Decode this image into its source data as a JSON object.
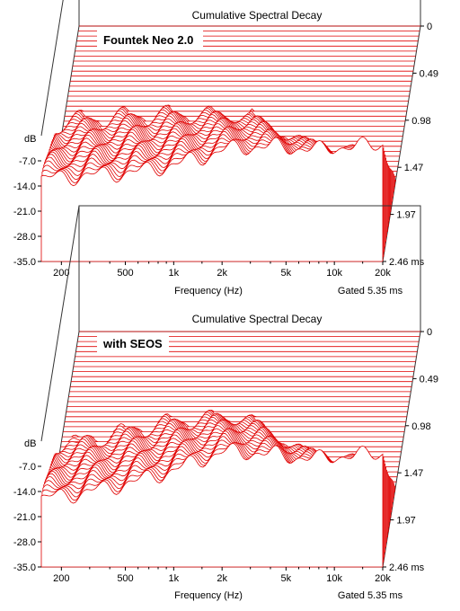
{
  "chart_data": [
    {
      "type": "waterfall",
      "title": "Cumulative Spectral Decay",
      "inset_label": "Fountek Neo 2.0",
      "xlabel": "Frequency (Hz)",
      "zlabel": "Gated 5.35 ms",
      "ylabel": "dB",
      "x_scale": "log",
      "xlim": [
        150,
        20000
      ],
      "x_ticks": [
        "200",
        "500",
        "1k",
        "2k",
        "5k",
        "10k",
        "20k"
      ],
      "x_tick_values": [
        200,
        500,
        1000,
        2000,
        5000,
        10000,
        20000
      ],
      "ylim": [
        -35,
        0
      ],
      "y_ticks": [
        "-7.0",
        "-14.0",
        "-21.0",
        "-28.0",
        "-35.0"
      ],
      "time_ticks": [
        "0",
        "0.49",
        "0.98",
        "1.47",
        "1.97",
        "2.46 ms"
      ],
      "tmax_ms": 2.46,
      "slices": 48,
      "color": "#e00000",
      "initial_response": [
        [
          150,
          -12
        ],
        [
          300,
          -11
        ],
        [
          600,
          -10
        ],
        [
          1000,
          -8
        ],
        [
          1500,
          -6
        ],
        [
          2000,
          -4
        ],
        [
          3000,
          -3
        ],
        [
          5000,
          -3
        ],
        [
          8000,
          -4
        ],
        [
          10000,
          -3
        ],
        [
          15000,
          -3
        ],
        [
          20000,
          -2
        ]
      ],
      "resonances": [
        {
          "freq": 1700,
          "level": -6,
          "decay_ms": 1.3
        },
        {
          "freq": 2200,
          "level": -8,
          "decay_ms": 1.8
        },
        {
          "freq": 2600,
          "level": -9,
          "decay_ms": 1.1
        },
        {
          "freq": 5000,
          "level": -16,
          "decay_ms": 0.6
        },
        {
          "freq": 9000,
          "level": -18,
          "decay_ms": 0.45
        }
      ]
    },
    {
      "type": "waterfall",
      "title": "Cumulative Spectral Decay",
      "inset_label": "with SEOS",
      "xlabel": "Frequency (Hz)",
      "zlabel": "Gated 5.35 ms",
      "ylabel": "dB",
      "x_scale": "log",
      "xlim": [
        150,
        20000
      ],
      "x_ticks": [
        "200",
        "500",
        "1k",
        "2k",
        "5k",
        "10k",
        "20k"
      ],
      "x_tick_values": [
        200,
        500,
        1000,
        2000,
        5000,
        10000,
        20000
      ],
      "ylim": [
        -35,
        0
      ],
      "y_ticks": [
        "-7.0",
        "-14.0",
        "-21.0",
        "-28.0",
        "-35.0"
      ],
      "time_ticks": [
        "0",
        "0.49",
        "0.98",
        "1.47",
        "1.97",
        "2.46 ms"
      ],
      "tmax_ms": 2.46,
      "slices": 48,
      "color": "#e00000",
      "initial_response": [
        [
          150,
          -16
        ],
        [
          300,
          -14
        ],
        [
          600,
          -11
        ],
        [
          1000,
          -8
        ],
        [
          1500,
          -5
        ],
        [
          2000,
          -3
        ],
        [
          3000,
          -3
        ],
        [
          5000,
          -4
        ],
        [
          8000,
          -5
        ],
        [
          10000,
          -4
        ],
        [
          15000,
          -4
        ],
        [
          20000,
          -3
        ]
      ],
      "resonances": [
        {
          "freq": 500,
          "level": -20,
          "decay_ms": 2.0
        },
        {
          "freq": 1500,
          "level": -8,
          "decay_ms": 1.6
        },
        {
          "freq": 2100,
          "level": -10,
          "decay_ms": 1.4
        },
        {
          "freq": 2700,
          "level": -11,
          "decay_ms": 1.2
        },
        {
          "freq": 6000,
          "level": -14,
          "decay_ms": 0.7
        }
      ]
    }
  ]
}
